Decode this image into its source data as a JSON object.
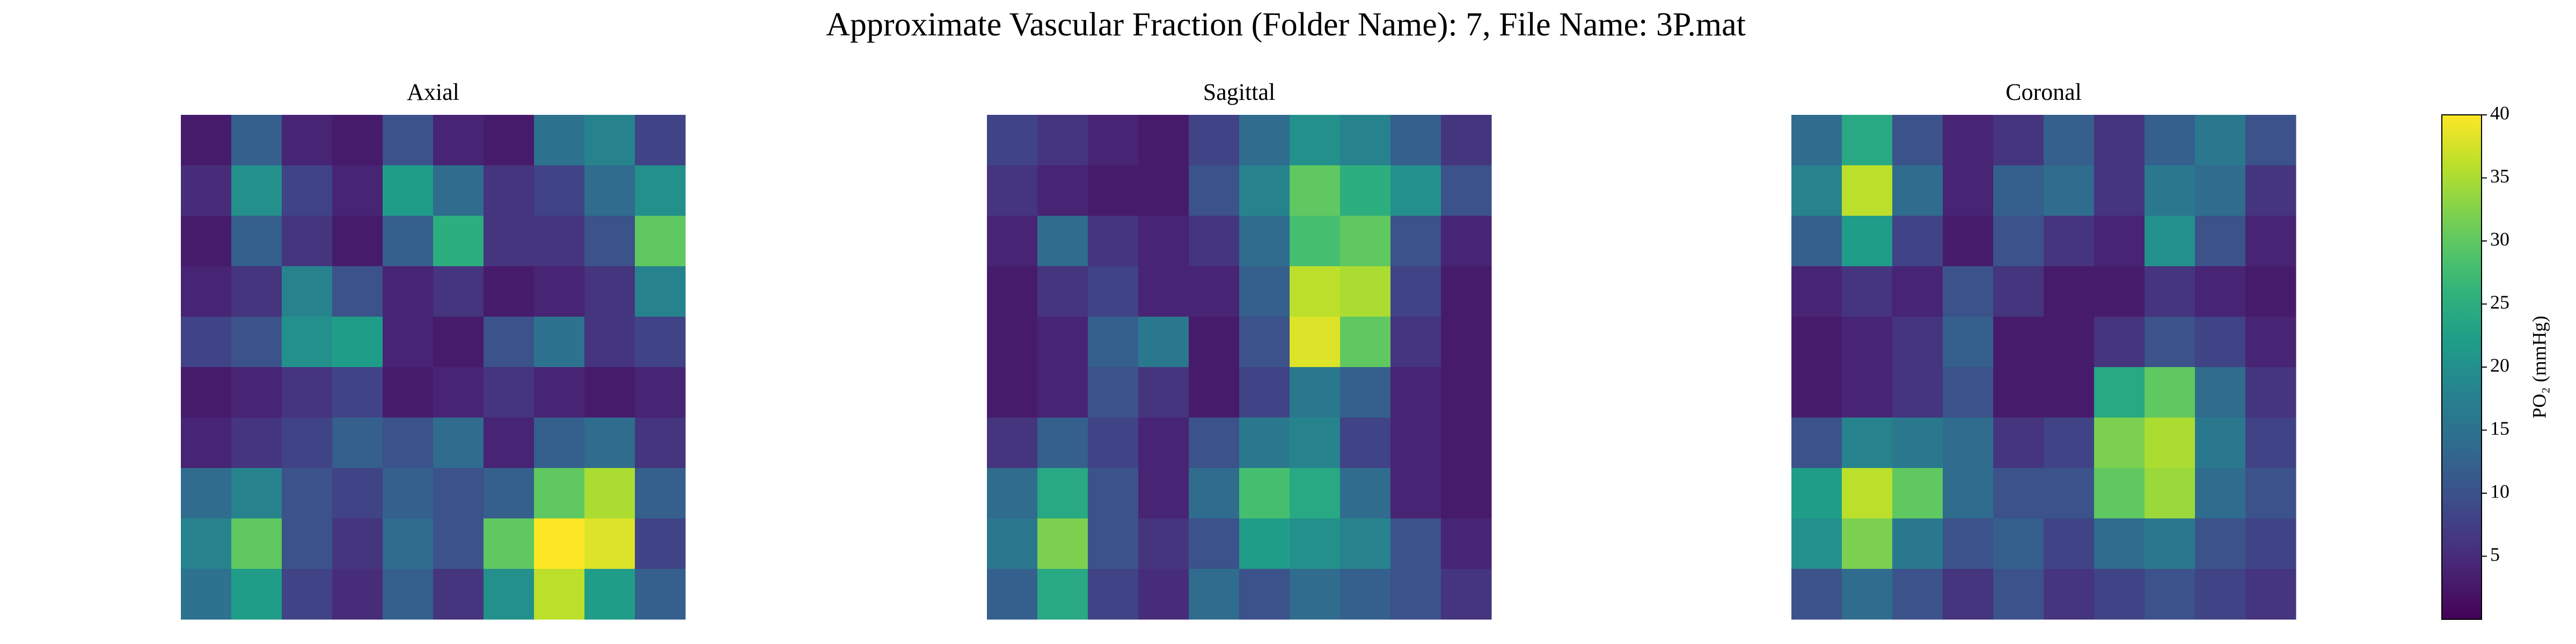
{
  "title": "Approximate Vascular Fraction (Folder Name): 7, File Name: 3P.mat",
  "chart_data": [
    {
      "type": "heatmap",
      "title": "Axial",
      "colormap": "viridis",
      "values": [
        [
          3,
          12,
          4,
          3,
          10,
          4,
          3,
          15,
          18,
          8
        ],
        [
          5,
          20,
          8,
          4,
          22,
          14,
          6,
          8,
          14,
          20
        ],
        [
          3,
          12,
          6,
          3,
          12,
          25,
          6,
          6,
          10,
          30
        ],
        [
          4,
          6,
          18,
          10,
          4,
          6,
          3,
          4,
          6,
          18
        ],
        [
          8,
          10,
          20,
          22,
          4,
          3,
          10,
          15,
          6,
          8
        ],
        [
          3,
          4,
          6,
          8,
          3,
          4,
          6,
          4,
          3,
          4
        ],
        [
          4,
          6,
          8,
          12,
          10,
          14,
          4,
          12,
          14,
          6
        ],
        [
          14,
          18,
          10,
          8,
          12,
          10,
          12,
          30,
          35,
          12
        ],
        [
          18,
          30,
          10,
          6,
          14,
          10,
          30,
          40,
          38,
          8
        ],
        [
          15,
          22,
          8,
          5,
          12,
          6,
          20,
          36,
          22,
          12
        ]
      ]
    },
    {
      "type": "heatmap",
      "title": "Sagittal",
      "colormap": "viridis",
      "values": [
        [
          8,
          6,
          4,
          3,
          8,
          14,
          20,
          18,
          12,
          6
        ],
        [
          6,
          4,
          3,
          3,
          10,
          18,
          30,
          25,
          20,
          10
        ],
        [
          4,
          14,
          6,
          4,
          6,
          14,
          28,
          30,
          10,
          4
        ],
        [
          3,
          6,
          8,
          4,
          4,
          12,
          36,
          35,
          8,
          3
        ],
        [
          3,
          4,
          12,
          16,
          3,
          10,
          38,
          30,
          6,
          3
        ],
        [
          3,
          4,
          10,
          6,
          3,
          8,
          16,
          12,
          4,
          3
        ],
        [
          6,
          12,
          8,
          4,
          10,
          16,
          18,
          8,
          4,
          3
        ],
        [
          14,
          24,
          10,
          4,
          14,
          28,
          24,
          14,
          4,
          3
        ],
        [
          16,
          32,
          10,
          6,
          10,
          22,
          20,
          18,
          10,
          4
        ],
        [
          12,
          24,
          8,
          5,
          14,
          10,
          14,
          12,
          10,
          6
        ]
      ]
    },
    {
      "type": "heatmap",
      "title": "Coronal",
      "colormap": "viridis",
      "values": [
        [
          14,
          24,
          10,
          4,
          6,
          12,
          6,
          12,
          16,
          10
        ],
        [
          18,
          36,
          14,
          4,
          12,
          14,
          6,
          16,
          14,
          6
        ],
        [
          12,
          22,
          8,
          3,
          10,
          6,
          4,
          20,
          10,
          4
        ],
        [
          4,
          6,
          4,
          10,
          6,
          3,
          3,
          6,
          4,
          3
        ],
        [
          3,
          4,
          6,
          12,
          3,
          3,
          6,
          10,
          8,
          4
        ],
        [
          3,
          4,
          6,
          10,
          3,
          3,
          24,
          30,
          14,
          6
        ],
        [
          10,
          18,
          16,
          14,
          6,
          8,
          32,
          35,
          16,
          8
        ],
        [
          22,
          36,
          30,
          14,
          10,
          10,
          30,
          34,
          14,
          10
        ],
        [
          20,
          32,
          16,
          10,
          12,
          8,
          14,
          16,
          10,
          8
        ],
        [
          10,
          14,
          10,
          6,
          10,
          6,
          8,
          10,
          8,
          6
        ]
      ]
    }
  ],
  "colorbar": {
    "label": "PO₂ (mmHg)",
    "colormap": "viridis",
    "zlim": [
      0,
      40
    ],
    "ticks": [
      5,
      10,
      15,
      20,
      25,
      30,
      35,
      40
    ]
  }
}
